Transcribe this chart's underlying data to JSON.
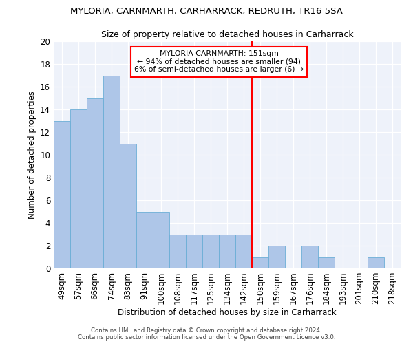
{
  "title1": "MYLORIA, CARNMARTH, CARHARRACK, REDRUTH, TR16 5SA",
  "title2": "Size of property relative to detached houses in Carharrack",
  "xlabel": "Distribution of detached houses by size in Carharrack",
  "ylabel": "Number of detached properties",
  "categories": [
    "49sqm",
    "57sqm",
    "66sqm",
    "74sqm",
    "83sqm",
    "91sqm",
    "100sqm",
    "108sqm",
    "117sqm",
    "125sqm",
    "134sqm",
    "142sqm",
    "150sqm",
    "159sqm",
    "167sqm",
    "176sqm",
    "184sqm",
    "193sqm",
    "201sqm",
    "210sqm",
    "218sqm"
  ],
  "values": [
    13,
    14,
    15,
    17,
    11,
    5,
    5,
    3,
    3,
    3,
    3,
    3,
    1,
    2,
    0,
    2,
    1,
    0,
    0,
    1,
    0
  ],
  "bar_color": "#aec6e8",
  "bar_edge_color": "#6baed6",
  "vline_index": 12,
  "vline_color": "red",
  "annotation_text": "MYLORIA CARNMARTH: 151sqm\n← 94% of detached houses are smaller (94)\n6% of semi-detached houses are larger (6) →",
  "annotation_box_color": "white",
  "annotation_box_edge_color": "red",
  "ylim": [
    0,
    20
  ],
  "yticks": [
    0,
    2,
    4,
    6,
    8,
    10,
    12,
    14,
    16,
    18,
    20
  ],
  "footer1": "Contains HM Land Registry data © Crown copyright and database right 2024.",
  "footer2": "Contains public sector information licensed under the Open Government Licence v3.0.",
  "bg_color": "#eef2fa"
}
